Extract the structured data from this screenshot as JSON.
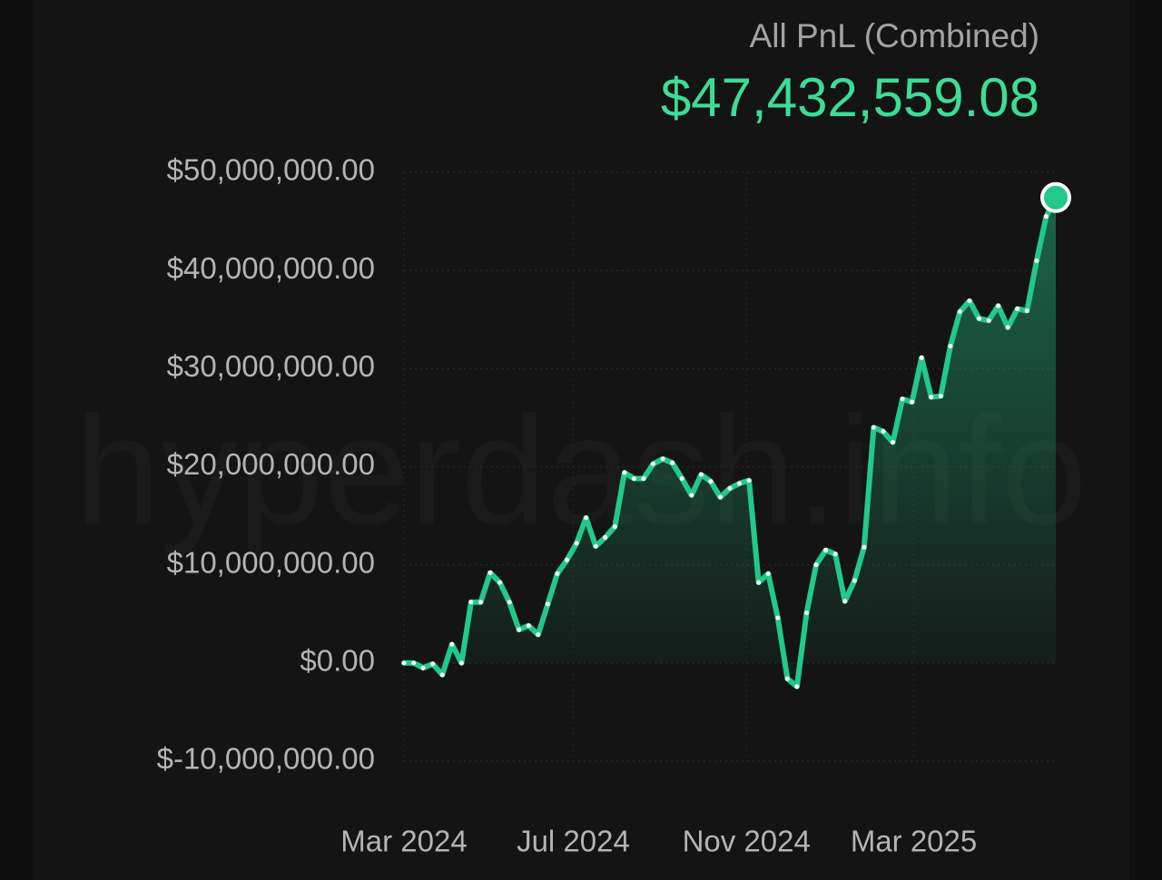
{
  "chart_data": {
    "type": "line",
    "title": "All PnL (Combined)",
    "headline_value": "$47,432,559.08",
    "watermark": "hyperdash.info",
    "color": "#22c98a",
    "grid": true,
    "ylim": [
      -10000000,
      50000000
    ],
    "yticks": [
      {
        "value": 50000000,
        "label": "$50,000,000.00"
      },
      {
        "value": 40000000,
        "label": "$40,000,000.00"
      },
      {
        "value": 30000000,
        "label": "$30,000,000.00"
      },
      {
        "value": 20000000,
        "label": "$20,000,000.00"
      },
      {
        "value": 10000000,
        "label": "$10,000,000.00"
      },
      {
        "value": 0,
        "label": "$0.00"
      },
      {
        "value": -10000000,
        "label": "$-10,000,000.00"
      }
    ],
    "xlim": [
      0,
      67
    ],
    "xticks": [
      {
        "value": 0,
        "label": "Mar 2024"
      },
      {
        "value": 17.4,
        "label": "Jul 2024"
      },
      {
        "value": 35.2,
        "label": "Nov 2024"
      },
      {
        "value": 52.4,
        "label": "Mar 2025"
      }
    ],
    "values": [
      0,
      0,
      -500000,
      -100000,
      -1200000,
      1900000,
      0,
      6200000,
      6200000,
      9200000,
      8200000,
      6200000,
      3400000,
      3800000,
      2900000,
      6000000,
      9100000,
      10500000,
      12200000,
      14800000,
      11900000,
      12800000,
      13900000,
      19400000,
      18800000,
      18800000,
      20300000,
      20800000,
      20400000,
      18800000,
      17100000,
      19200000,
      18500000,
      16900000,
      17800000,
      18300000,
      18600000,
      8200000,
      9100000,
      4600000,
      -1600000,
      -2400000,
      5100000,
      10000000,
      11500000,
      11100000,
      6300000,
      8400000,
      11800000,
      24000000,
      23600000,
      22500000,
      26900000,
      26600000,
      31100000,
      27100000,
      27200000,
      32300000,
      35800000,
      36900000,
      35100000,
      34900000,
      36400000,
      34200000,
      36100000,
      35900000,
      41000000,
      45500000,
      47432559.08
    ]
  }
}
